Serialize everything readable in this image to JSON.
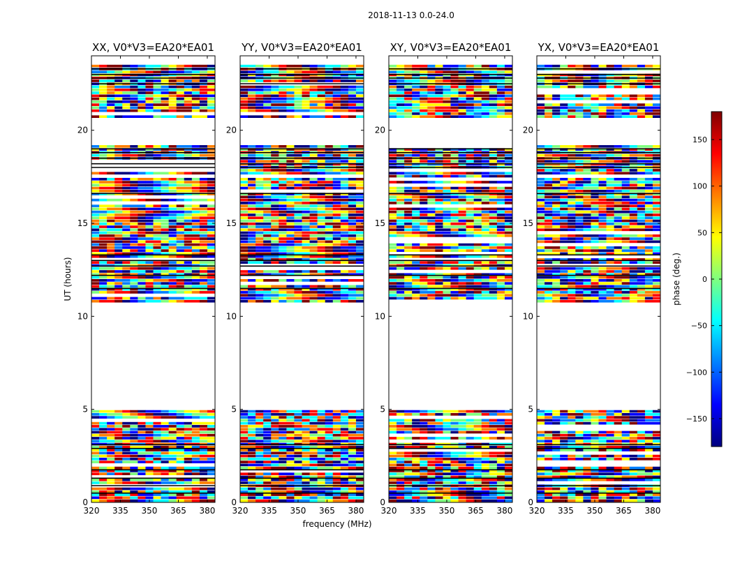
{
  "chart_data": {
    "type": "heatmap",
    "suptitle": "2018-11-13 0.0-24.0",
    "xlabel": "frequency (MHz)",
    "ylabel": "UT (hours)",
    "xlim": [
      320,
      384
    ],
    "ylim": [
      0,
      24
    ],
    "xticks": [
      320,
      335,
      350,
      365,
      380
    ],
    "yticks": [
      0,
      5,
      10,
      15,
      20
    ],
    "colorbar": {
      "label": "phase (deg.)",
      "range": [
        -180,
        180
      ],
      "ticks": [
        -150,
        -100,
        -50,
        0,
        50,
        100,
        150
      ],
      "colormap": "jet",
      "stops": [
        "#00007f",
        "#0000ff",
        "#007fff",
        "#00ffff",
        "#7fff7f",
        "#ffff00",
        "#ff7f00",
        "#ff0000",
        "#7f0000"
      ]
    },
    "panels": [
      {
        "title": "XX, V0*V3=EA20*EA01",
        "polarization": "XX"
      },
      {
        "title": "YY, V0*V3=EA20*EA01",
        "polarization": "YY"
      },
      {
        "title": "XY, V0*V3=EA20*EA01",
        "polarization": "XY"
      },
      {
        "title": "YX, V0*V3=EA20*EA01",
        "polarization": "YX"
      }
    ],
    "data_coverage_hours": [
      [
        0.0,
        4.95
      ],
      [
        10.7,
        19.2
      ],
      [
        20.5,
        23.5
      ]
    ],
    "gap_hours": [
      [
        1.4,
        1.65
      ],
      [
        4.95,
        10.7
      ],
      [
        19.2,
        20.5
      ]
    ],
    "flag_lines_hours": [
      0.5,
      0.9,
      1.3,
      1.75,
      2.9,
      3.1,
      11.5,
      12.2,
      12.7,
      13.0,
      13.3,
      16.6,
      18.0,
      18.2,
      18.5,
      18.8,
      19.0,
      22.5,
      22.8,
      23.0,
      23.3
    ]
  }
}
